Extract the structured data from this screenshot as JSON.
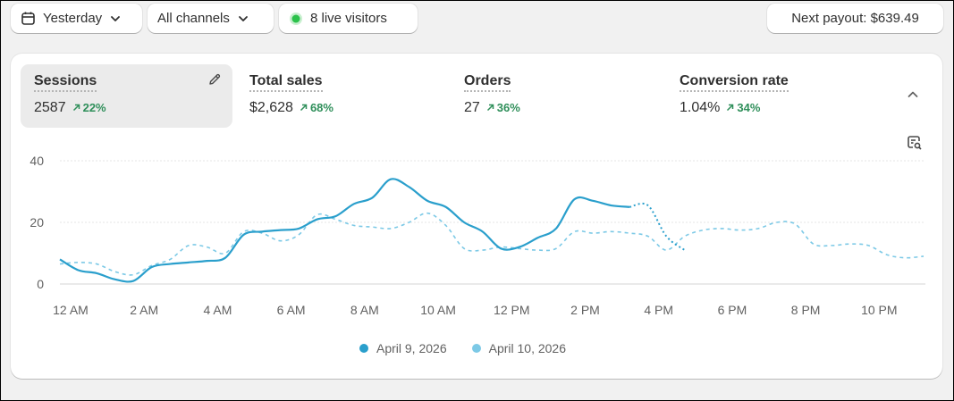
{
  "toolbar": {
    "date_label": "Yesterday",
    "channel_label": "All channels",
    "live_visitors_label": "8 live visitors",
    "payout_label": "Next payout: $639.49"
  },
  "metrics": [
    {
      "title": "Sessions",
      "value": "2587",
      "change": "22%"
    },
    {
      "title": "Total sales",
      "value": "$2,628",
      "change": "68%"
    },
    {
      "title": "Orders",
      "value": "27",
      "change": "36%"
    },
    {
      "title": "Conversion rate",
      "value": "1.04%",
      "change": "34%"
    }
  ],
  "colors": {
    "series_primary": "#2a9fcc",
    "series_comparison": "#7cc9e6",
    "positive": "#2f8f5a",
    "live_dot": "#2bc24b"
  },
  "chart_data": {
    "type": "line",
    "x_tick_labels": [
      "12 AM",
      "2 AM",
      "4 AM",
      "6 AM",
      "8 AM",
      "10 AM",
      "12 PM",
      "2 PM",
      "4 PM",
      "6 PM",
      "8 PM",
      "10 PM"
    ],
    "y_tick_labels": [
      "40",
      "20",
      "0"
    ],
    "ylim": [
      0,
      40
    ],
    "xlim": [
      0,
      23.5
    ],
    "grid": true,
    "legend_position": "bottom-center",
    "series": [
      {
        "name": "April 9, 2026",
        "x": [
          0,
          0.5,
          1,
          1.5,
          2,
          2.5,
          3,
          3.5,
          4,
          4.5,
          5,
          5.5,
          6,
          6.5,
          7,
          7.5,
          8,
          8.5,
          9,
          9.5,
          10,
          10.5,
          11,
          11.5,
          12,
          12.5,
          13,
          13.5,
          14,
          14.5,
          15,
          15.5,
          16
        ],
        "y": [
          8,
          4.5,
          3.5,
          1.5,
          1,
          5.5,
          6.5,
          7,
          7.5,
          8.5,
          16,
          17,
          17.5,
          18,
          21,
          22,
          26,
          28,
          34,
          31.5,
          27,
          25,
          20,
          17,
          11.5,
          12,
          15,
          18,
          27.5,
          27,
          25.5,
          25,
          25.5
        ],
        "dashed_after_x": 15.5
      },
      {
        "name": "April 10, 2026",
        "x": [
          0,
          0.5,
          1,
          1.5,
          2,
          2.5,
          3,
          3.5,
          4,
          4.5,
          5,
          5.5,
          6,
          6.5,
          7,
          7.5,
          8,
          8.5,
          9,
          9.5,
          10,
          10.5,
          11,
          11.5,
          12,
          12.5,
          13,
          13.5,
          14,
          14.5,
          15,
          15.5,
          16,
          16.5,
          17,
          17.5,
          18,
          18.5,
          19,
          19.5,
          20,
          20.5,
          21,
          21.5,
          22,
          22.5,
          23,
          23.5
        ],
        "y": [
          6.5,
          7,
          6.5,
          4,
          3,
          6,
          8,
          12.5,
          12,
          10,
          17,
          16.5,
          14,
          16,
          22.5,
          21,
          19,
          18.5,
          18,
          20,
          23,
          19,
          11.5,
          11,
          12,
          11.5,
          11,
          11.5,
          17,
          16.5,
          17,
          16.5,
          15.5,
          11,
          15.5,
          17.5,
          18,
          17.5,
          18,
          20,
          19.5,
          13,
          12.5,
          13,
          12.5,
          9.5,
          8.5,
          9
        ]
      }
    ]
  }
}
